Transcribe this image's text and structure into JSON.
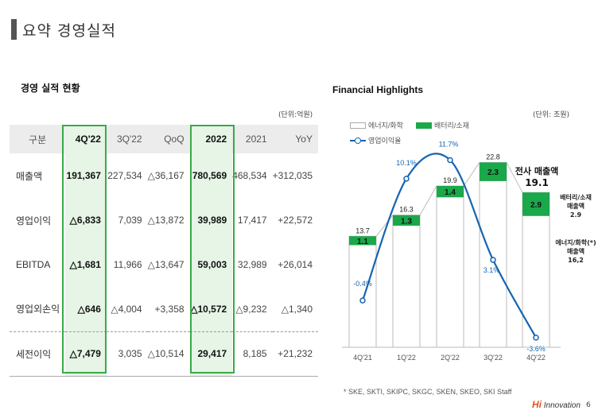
{
  "header": {
    "title": "요약 경영실적"
  },
  "left": {
    "title_prefix": "경영 실적 ",
    "title_highlight": "현황",
    "unit": "(단위:억원)",
    "columns": [
      "구분",
      "4Q'22",
      "3Q'22",
      "QoQ",
      "2022",
      "2021",
      "YoY"
    ],
    "rows": [
      {
        "label": "매출액",
        "cells": [
          "191,367",
          "227,534",
          "△36,167",
          "780,569",
          "468,534",
          "+312,035"
        ]
      },
      {
        "label": "영업이익",
        "cells": [
          "△6,833",
          "7,039",
          "△13,872",
          "39,989",
          "17,417",
          "+22,572"
        ]
      },
      {
        "label": "EBITDA",
        "cells": [
          "△1,681",
          "11,966",
          "△13,647",
          "59,003",
          "32,989",
          "+26,014"
        ]
      },
      {
        "label": "영업외손익",
        "cells": [
          "△646",
          "△4,004",
          "+3,358",
          "△10,572",
          "△9,232",
          "△1,340"
        ]
      },
      {
        "label": "세전이익",
        "cells": [
          "△7,479",
          "3,035",
          "△10,514",
          "29,417",
          "8,185",
          "+21,232"
        ]
      }
    ]
  },
  "right": {
    "title": "Financial Highlights",
    "unit": "(단위: 조원)",
    "legend": {
      "energy": "에너지/화학",
      "battery": "배터리/소재",
      "op_margin": "영업이익율"
    },
    "annotation_total_label": "전사 매출액",
    "annotation_total_value": "19.1",
    "annotation_battery_1": "배터리/소재",
    "annotation_battery_2": "매출액",
    "annotation_battery_3": "2.9",
    "annotation_energy_1": "에너지/화학(*)",
    "annotation_energy_2": "매출액",
    "annotation_energy_3": "16,2",
    "footnote": "* SKE, SKTI, SKIPC, SKGC, SKEN, SKEO, SKI Staff",
    "logo_mark": "Hi",
    "logo_text": " Innovation",
    "page_number": "6"
  },
  "chart_data": {
    "type": "bar",
    "title": "Financial Highlights",
    "categories": [
      "4Q'21",
      "1Q'22",
      "2Q'22",
      "3Q'22",
      "4Q'22"
    ],
    "totals": [
      "13.7",
      "16.3",
      "19.9",
      "22.8",
      ""
    ],
    "series": [
      {
        "name": "배터리/소재",
        "values": [
          1.1,
          1.3,
          1.4,
          2.3,
          2.9
        ],
        "labels": [
          "1.1",
          "1.3",
          "1.4",
          "2.3",
          "2.9"
        ]
      },
      {
        "name": "에너지/화학",
        "values": [
          12.6,
          15.0,
          18.5,
          20.5,
          16.2
        ]
      },
      {
        "name": "영업이익율",
        "values": [
          -0.4,
          10.1,
          11.7,
          3.1,
          -3.6
        ],
        "labels": [
          "-0.4%",
          "10.1%",
          "11.7%",
          "3.1%",
          "-3.6%"
        ]
      }
    ],
    "colors": {
      "battery": "#1aa84a",
      "energy_border": "#bbbbbb",
      "line": "#1565b0"
    }
  }
}
